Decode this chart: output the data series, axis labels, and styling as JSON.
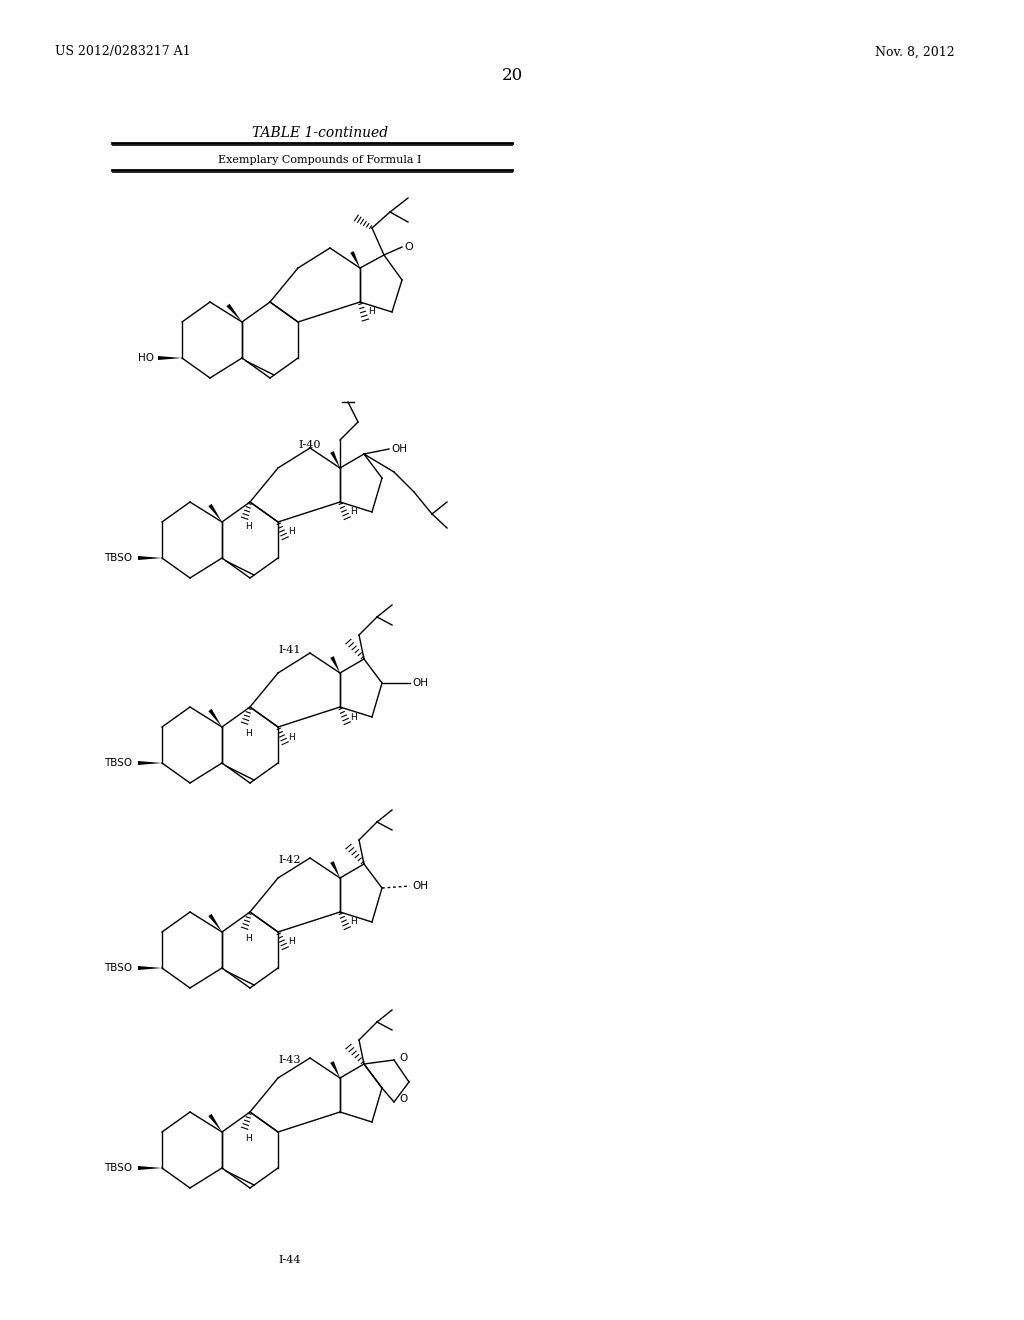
{
  "page_left_header": "US 2012/0283217 A1",
  "page_right_header": "Nov. 8, 2012",
  "page_number": "20",
  "table_title": "TABLE 1-continued",
  "table_subtitle": "Exemplary Compounds of Formula I",
  "compound_labels": [
    "I-40",
    "I-41",
    "I-42",
    "I-43",
    "I-44"
  ],
  "background_color": "#ffffff",
  "text_color": "#000000",
  "line_color": "#000000",
  "header_fontsize": 9,
  "table_title_fontsize": 10,
  "subtitle_fontsize": 8,
  "label_fontsize": 8
}
